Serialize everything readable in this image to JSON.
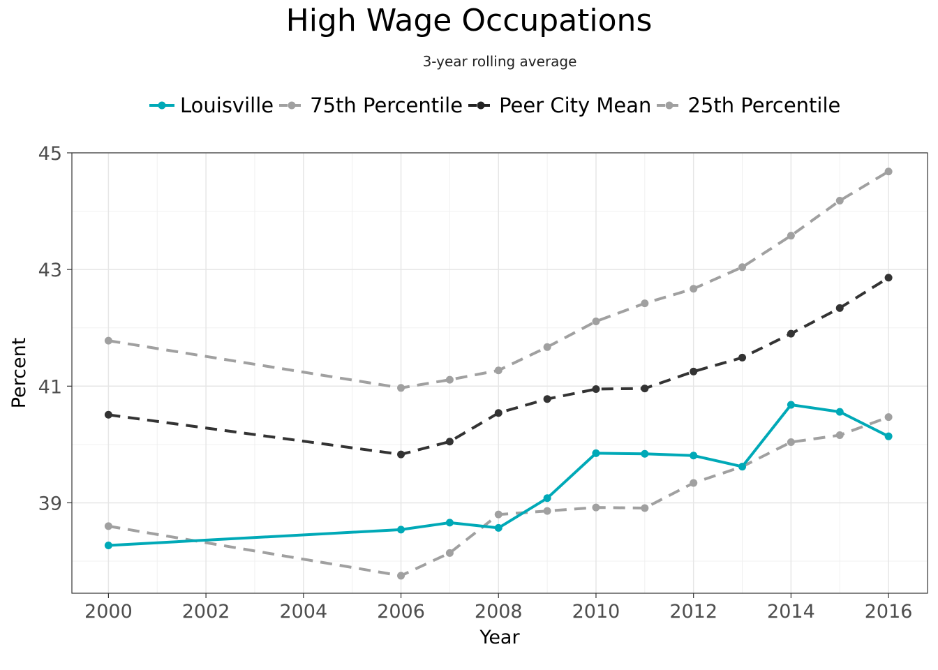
{
  "chart_data": {
    "type": "line",
    "title": "High Wage Occupations",
    "subtitle": "3-year rolling average",
    "xlabel": "Year",
    "ylabel": "Percent",
    "xlim": [
      1999.25,
      2016.8
    ],
    "ylim": [
      37.45,
      45.0
    ],
    "x_ticks": [
      2000,
      2002,
      2004,
      2006,
      2008,
      2010,
      2012,
      2014,
      2016
    ],
    "y_ticks": [
      39,
      41,
      43,
      45
    ],
    "grid": true,
    "legend_position": "top",
    "series": [
      {
        "name": "Louisville",
        "color": "#00a9b7",
        "style": "solid",
        "x": [
          2000,
          2006,
          2007,
          2008,
          2009,
          2010,
          2011,
          2012,
          2013,
          2014,
          2015,
          2016
        ],
        "values": [
          38.27,
          38.54,
          38.66,
          38.57,
          39.08,
          39.85,
          39.84,
          39.81,
          39.62,
          40.68,
          40.56,
          40.14
        ]
      },
      {
        "name": "75th Percentile",
        "color": "#a0a0a0",
        "style": "dashed",
        "x": [
          2000,
          2006,
          2007,
          2008,
          2009,
          2010,
          2011,
          2012,
          2013,
          2014,
          2015,
          2016
        ],
        "values": [
          41.78,
          40.97,
          41.11,
          41.27,
          41.67,
          42.11,
          42.42,
          42.67,
          43.04,
          43.58,
          44.18,
          44.68
        ]
      },
      {
        "name": "Peer City Mean",
        "color": "#333333",
        "style": "dashed",
        "x": [
          2000,
          2006,
          2007,
          2008,
          2009,
          2010,
          2011,
          2012,
          2013,
          2014,
          2015,
          2016
        ],
        "values": [
          40.51,
          39.83,
          40.05,
          40.54,
          40.78,
          40.95,
          40.96,
          41.25,
          41.49,
          41.9,
          42.34,
          42.86
        ]
      },
      {
        "name": "25th Percentile",
        "color": "#a0a0a0",
        "style": "dashed",
        "x": [
          2000,
          2006,
          2007,
          2008,
          2009,
          2010,
          2011,
          2012,
          2013,
          2014,
          2015,
          2016
        ],
        "values": [
          38.6,
          37.75,
          38.14,
          38.8,
          38.86,
          38.92,
          38.91,
          39.34,
          39.62,
          40.04,
          40.16,
          40.47
        ]
      }
    ]
  }
}
